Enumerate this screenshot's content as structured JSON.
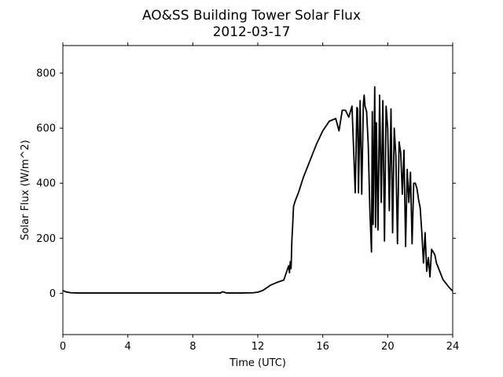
{
  "chart_data": {
    "type": "line",
    "title": "AO&SS Building Tower Solar Flux",
    "subtitle": "2012-03-17",
    "xlabel": "Time (UTC)",
    "ylabel": "Solar Flux (W/m^2)",
    "xlim": [
      0,
      24
    ],
    "ylim": [
      -150,
      900
    ],
    "xticks": [
      0,
      4,
      8,
      12,
      16,
      20,
      24
    ],
    "yticks": [
      0,
      200,
      400,
      600,
      800
    ],
    "grid": false,
    "line_color": "#000000",
    "series": [
      {
        "x": [
          0,
          0.2,
          0.5,
          1,
          2,
          4,
          6,
          8,
          9.7,
          9.8,
          9.9,
          10.0,
          10.2,
          11,
          11.7,
          12.0,
          12.3,
          12.5,
          12.8,
          13.2,
          13.6,
          13.9,
          13.95,
          14.0,
          14.05,
          14.1,
          14.15,
          14.2,
          14.3,
          14.5,
          14.8,
          15.2,
          15.6,
          16.0,
          16.4,
          16.8,
          17.0,
          17.2,
          17.4,
          17.6,
          17.8,
          18.0,
          18.1,
          18.15,
          18.2,
          18.3,
          18.4,
          18.5,
          18.55,
          18.6,
          18.7,
          18.8,
          18.9,
          19.0,
          19.05,
          19.1,
          19.2,
          19.25,
          19.3,
          19.4,
          19.5,
          19.6,
          19.7,
          19.8,
          19.9,
          20.0,
          20.1,
          20.2,
          20.3,
          20.4,
          20.5,
          20.6,
          20.7,
          20.8,
          20.9,
          21.0,
          21.1,
          21.2,
          21.3,
          21.4,
          21.5,
          21.6,
          21.7,
          21.8,
          21.9,
          22.0,
          22.1,
          22.2,
          22.3,
          22.4,
          22.5,
          22.6,
          22.7,
          22.8,
          22.9,
          23.0,
          23.2,
          23.4,
          23.6,
          23.8,
          24.0
        ],
        "y": [
          10,
          5,
          2,
          1,
          1,
          1,
          1,
          1,
          1,
          5,
          5,
          2,
          1,
          1,
          2,
          4,
          10,
          18,
          30,
          40,
          48,
          100,
          75,
          115,
          90,
          195,
          250,
          315,
          335,
          365,
          420,
          480,
          540,
          590,
          625,
          635,
          590,
          665,
          665,
          640,
          680,
          365,
          675,
          670,
          365,
          700,
          360,
          690,
          720,
          680,
          660,
          540,
          300,
          150,
          660,
          250,
          750,
          240,
          620,
          230,
          720,
          330,
          700,
          190,
          680,
          600,
          300,
          670,
          220,
          600,
          500,
          180,
          550,
          510,
          360,
          520,
          170,
          450,
          330,
          440,
          180,
          400,
          400,
          380,
          340,
          310,
          220,
          110,
          220,
          80,
          130,
          60,
          160,
          150,
          140,
          110,
          80,
          50,
          35,
          20,
          8
        ]
      }
    ]
  }
}
